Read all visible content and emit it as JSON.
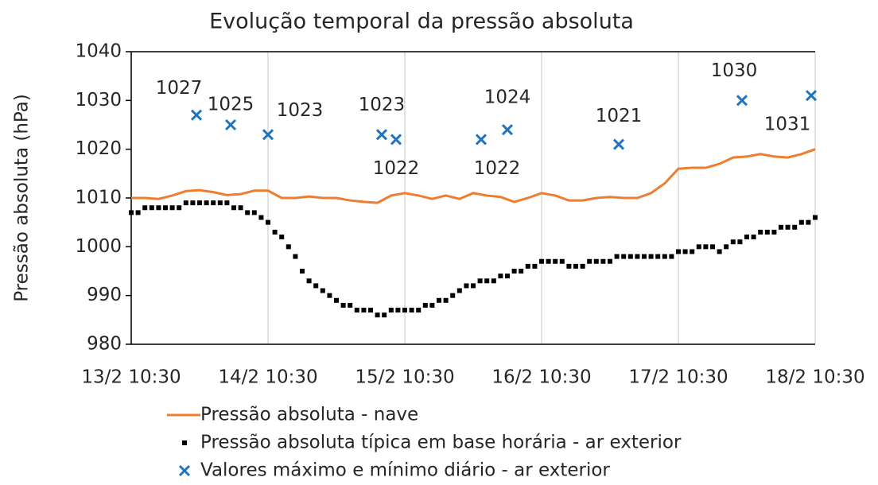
{
  "chart_data": {
    "type": "line",
    "title": "Evolução temporal da pressão absoluta",
    "y_label": "Pressão absoluta (hPa)",
    "xlim": [
      0,
      5
    ],
    "xticks": [
      {
        "value": 0,
        "label": "13/2 10:30"
      },
      {
        "value": 1,
        "label": "14/2 10:30"
      },
      {
        "value": 2,
        "label": "15/2 10:30"
      },
      {
        "value": 3,
        "label": "16/2 10:30"
      },
      {
        "value": 4,
        "label": "17/2 10:30"
      },
      {
        "value": 5,
        "label": "18/2 10:30"
      }
    ],
    "ylim": [
      980,
      1040
    ],
    "yticks": [
      980,
      990,
      1000,
      1010,
      1020,
      1030,
      1040
    ],
    "grid": "x",
    "legend": "bottom",
    "series": [
      {
        "name": "Pressão absoluta - nave",
        "type": "line",
        "color": "#ED7D31",
        "x": [
          0,
          0.1,
          0.2,
          0.3,
          0.4,
          0.5,
          0.6,
          0.7,
          0.8,
          0.9,
          1,
          1.1,
          1.2,
          1.3,
          1.4,
          1.5,
          1.6,
          1.7,
          1.8,
          1.9,
          2,
          2.1,
          2.2,
          2.3,
          2.4,
          2.5,
          2.6,
          2.7,
          2.8,
          2.9,
          3,
          3.1,
          3.2,
          3.3,
          3.4,
          3.5,
          3.6,
          3.7,
          3.8,
          3.9,
          4,
          4.1,
          4.2,
          4.3,
          4.4,
          4.5,
          4.6,
          4.7,
          4.8,
          4.9,
          5
        ],
        "values": [
          1010,
          1010,
          1009.8,
          1010.5,
          1011.4,
          1011.6,
          1011.2,
          1010.6,
          1010.8,
          1011.5,
          1011.5,
          1010,
          1010,
          1010.3,
          1010,
          1010,
          1009.5,
          1009.2,
          1009,
          1010.5,
          1011,
          1010.5,
          1009.8,
          1010.5,
          1009.8,
          1011,
          1010.5,
          1010.2,
          1009.2,
          1010,
          1011,
          1010.5,
          1009.5,
          1009.5,
          1010,
          1010.2,
          1010,
          1010,
          1011,
          1013,
          1016,
          1016.2,
          1016.2,
          1017,
          1018.3,
          1018.5,
          1019,
          1018.5,
          1018.3,
          1019,
          1020
        ]
      },
      {
        "name": "Pressão absoluta típica em base horária - ar exterior",
        "type": "scatter",
        "marker": "square",
        "color": "#000000",
        "x": [
          0,
          0.05,
          0.1,
          0.15,
          0.2,
          0.25,
          0.3,
          0.35,
          0.4,
          0.45,
          0.5,
          0.55,
          0.6,
          0.65,
          0.7,
          0.75,
          0.8,
          0.85,
          0.9,
          0.95,
          1,
          1.05,
          1.1,
          1.15,
          1.2,
          1.25,
          1.3,
          1.35,
          1.4,
          1.45,
          1.5,
          1.55,
          1.6,
          1.65,
          1.7,
          1.75,
          1.8,
          1.85,
          1.9,
          1.95,
          2,
          2.05,
          2.1,
          2.15,
          2.2,
          2.25,
          2.3,
          2.35,
          2.4,
          2.45,
          2.5,
          2.55,
          2.6,
          2.65,
          2.7,
          2.75,
          2.8,
          2.85,
          2.9,
          2.95,
          3,
          3.05,
          3.1,
          3.15,
          3.2,
          3.25,
          3.3,
          3.35,
          3.4,
          3.45,
          3.5,
          3.55,
          3.6,
          3.65,
          3.7,
          3.75,
          3.8,
          3.85,
          3.9,
          3.95,
          4,
          4.05,
          4.1,
          4.15,
          4.2,
          4.25,
          4.3,
          4.35,
          4.4,
          4.45,
          4.5,
          4.55,
          4.6,
          4.65,
          4.7,
          4.75,
          4.8,
          4.85,
          4.9,
          4.95,
          5
        ],
        "values": [
          1007,
          1007,
          1008,
          1008,
          1008,
          1008,
          1008,
          1008,
          1009,
          1009,
          1009,
          1009,
          1009,
          1009,
          1009,
          1008,
          1008,
          1007,
          1007,
          1006,
          1005,
          1003,
          1002,
          1000,
          998,
          995,
          993,
          992,
          991,
          990,
          989,
          988,
          988,
          987,
          987,
          987,
          986,
          986,
          987,
          987,
          987,
          987,
          987,
          988,
          988,
          989,
          989,
          990,
          991,
          992,
          992,
          993,
          993,
          993,
          994,
          994,
          995,
          995,
          996,
          996,
          997,
          997,
          997,
          997,
          996,
          996,
          996,
          997,
          997,
          997,
          997,
          998,
          998,
          998,
          998,
          998,
          998,
          998,
          998,
          998,
          999,
          999,
          999,
          1000,
          1000,
          1000,
          999,
          1000,
          1001,
          1001,
          1002,
          1002,
          1003,
          1003,
          1003,
          1004,
          1004,
          1004,
          1005,
          1005,
          1006
        ]
      },
      {
        "name": "Valores máximo e mínimo diário - ar exterior",
        "type": "scatter",
        "marker": "x",
        "color": "#1F74BD",
        "data_labels": true,
        "x": [
          0.477,
          0.727,
          1.0,
          1.831,
          1.936,
          2.558,
          2.75,
          3.564,
          4.465,
          4.971
        ],
        "values": [
          1027,
          1025,
          1023,
          1023,
          1022,
          1022,
          1024,
          1021,
          1030,
          1031
        ]
      }
    ]
  }
}
